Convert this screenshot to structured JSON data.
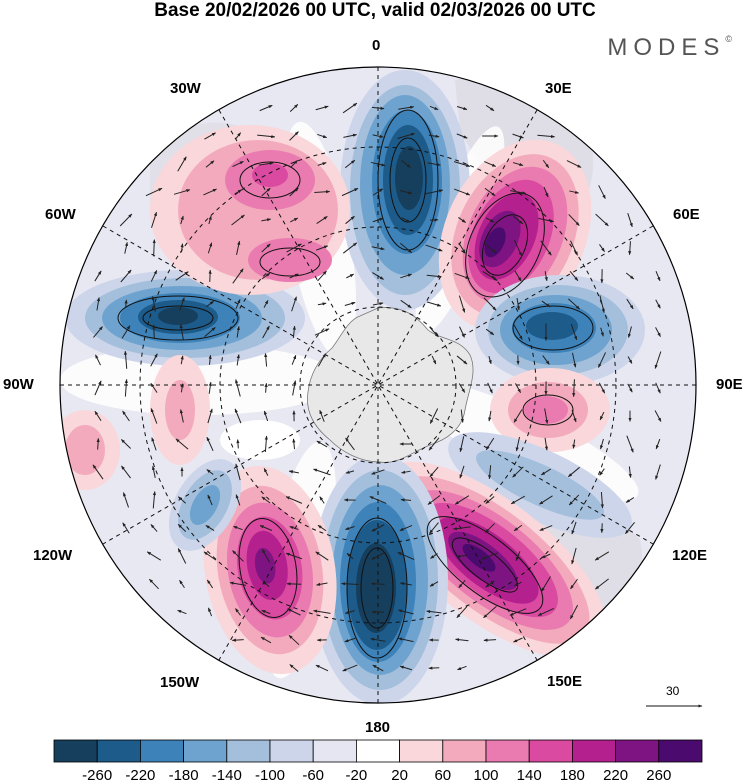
{
  "title": "Base 20/02/2026 00 UTC, valid 02/03/2026 00 UTC",
  "brand": "MODES",
  "brand_mark": "©",
  "longitude_labels": {
    "lon_0": "0",
    "lon_30e": "30E",
    "lon_60e": "60E",
    "lon_90e": "90E",
    "lon_120e": "120E",
    "lon_150e": "150E",
    "lon_180": "180",
    "lon_150w": "150W",
    "lon_120w": "120W",
    "lon_90w": "90W",
    "lon_60w": "60W",
    "lon_30w": "30W"
  },
  "vector_reference": "30",
  "colorbar": {
    "labels": [
      "-260",
      "-220",
      "-180",
      "-140",
      "-100",
      "-60",
      "-20",
      "20",
      "60",
      "100",
      "140",
      "180",
      "220",
      "260"
    ],
    "colors": [
      "#163f5e",
      "#1d5b8a",
      "#3d82b9",
      "#6ea3cf",
      "#a3bfdc",
      "#cdd5ea",
      "#e6e6f2",
      "#ffffff",
      "#f9d7da",
      "#f3aabd",
      "#ea7bb0",
      "#d94aa0",
      "#b4218e",
      "#7d1482",
      "#4b0a6e"
    ]
  },
  "anomaly_centers": [
    {
      "sign": "negative",
      "level": -220,
      "lon": 0
    },
    {
      "sign": "positive",
      "level": 240,
      "lon": 40
    },
    {
      "sign": "negative",
      "level": -180,
      "lon": 80
    },
    {
      "sign": "positive",
      "level": 100,
      "lon": 100
    },
    {
      "sign": "positive",
      "level": 260,
      "lon": 140
    },
    {
      "sign": "negative",
      "level": -240,
      "lon": 180
    },
    {
      "sign": "positive",
      "level": 220,
      "lon": -150
    },
    {
      "sign": "negative",
      "level": -140,
      "lon": -130
    },
    {
      "sign": "negative",
      "level": -220,
      "lon": -70
    },
    {
      "sign": "positive",
      "level": 140,
      "lon": -30
    }
  ]
}
